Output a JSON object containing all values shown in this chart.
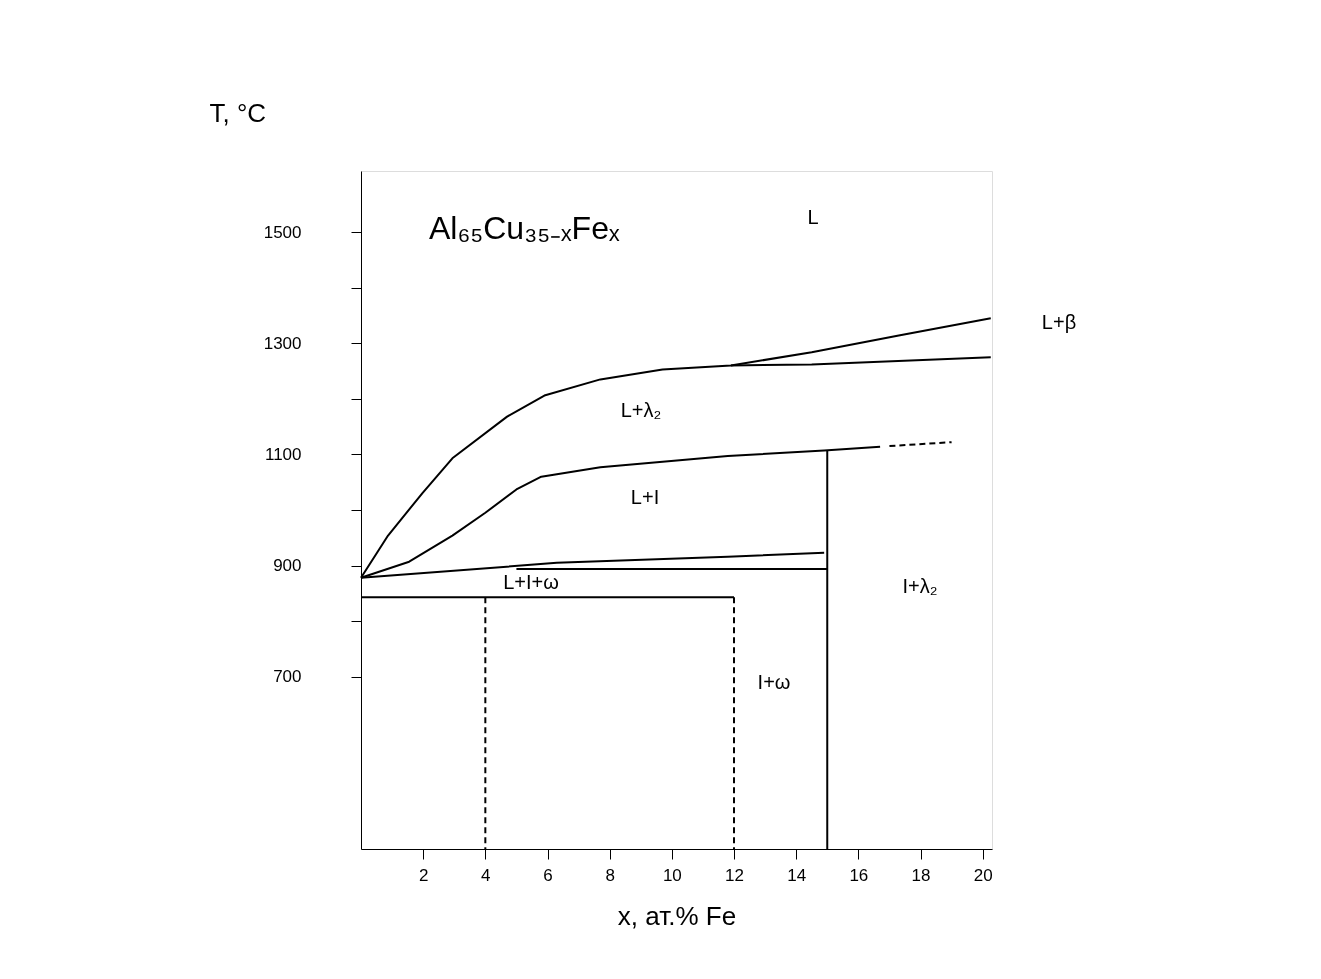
{
  "chart_data": {
    "type": "line",
    "title": "Al₆₅Cu₃₅₋ₓFeₓ",
    "xlabel": "x, ат.% Fe",
    "ylabel": "T, °C",
    "xlim": [
      0,
      20.3
    ],
    "ylim": [
      390,
      1610
    ],
    "xticks": [
      2,
      4,
      6,
      8,
      10,
      12,
      14,
      16,
      18,
      20
    ],
    "yticks": [
      700,
      {
        "value": 800,
        "label": null
      },
      900,
      {
        "value": 1000,
        "label": null
      },
      1100,
      {
        "value": 1200,
        "label": null
      },
      1300,
      {
        "value": 1400,
        "label": null
      },
      1500
    ],
    "grid": false,
    "legend": false,
    "marker": "none",
    "line_style": "solid",
    "series": [
      {
        "color": "#000000",
        "x": [
          0,
          0.87,
          1.97,
          2.94,
          4.7,
          5.9,
          7.7,
          9.7,
          11.9,
          14.5,
          17.3,
          20.26
        ],
        "values": [
          878,
          954,
          1030,
          1093,
          1168,
          1206,
          1235,
          1253,
          1260,
          1284,
          1314,
          1345
        ]
      },
      {
        "color": "#000000",
        "x": [
          11.9,
          14.5,
          20.26
        ],
        "values": [
          1260,
          1262,
          1275
        ]
      },
      {
        "color": "#000000",
        "x": [
          0,
          1.55,
          2.94,
          4.0,
          5.0,
          5.8,
          7.7,
          11.8,
          14.9,
          16.7
        ],
        "values": [
          878,
          907,
          954,
          995,
          1037,
          1060,
          1077,
          1097,
          1107,
          1114
        ]
      },
      {
        "color": "#000000",
        "line_style": "dashed",
        "x": [
          17.0,
          19
        ],
        "values": [
          1115,
          1122
        ]
      },
      {
        "color": "#000000",
        "x": [
          0,
          6.3,
          11.8,
          14.9
        ],
        "values": [
          878,
          905,
          916,
          923
        ]
      },
      {
        "color": "#000000",
        "x": [
          5,
          15
        ],
        "values": [
          894,
          894
        ]
      },
      {
        "color": "#000000",
        "x": [
          0,
          12
        ],
        "values": [
          843,
          843
        ]
      },
      {
        "color": "#000000",
        "line_style": "dashed",
        "x": [
          4,
          4
        ],
        "values": [
          843,
          390
        ]
      },
      {
        "color": "#000000",
        "line_style": "dashed",
        "x": [
          12,
          12
        ],
        "values": [
          843,
          390
        ]
      },
      {
        "color": "#000000",
        "x": [
          15,
          15
        ],
        "values": [
          1107,
          390
        ]
      }
    ],
    "annotations": [
      "L",
      "L+λ₂",
      "L+I",
      "L+I+ω",
      "I+λ₂",
      "I+ω",
      "L+β"
    ]
  }
}
